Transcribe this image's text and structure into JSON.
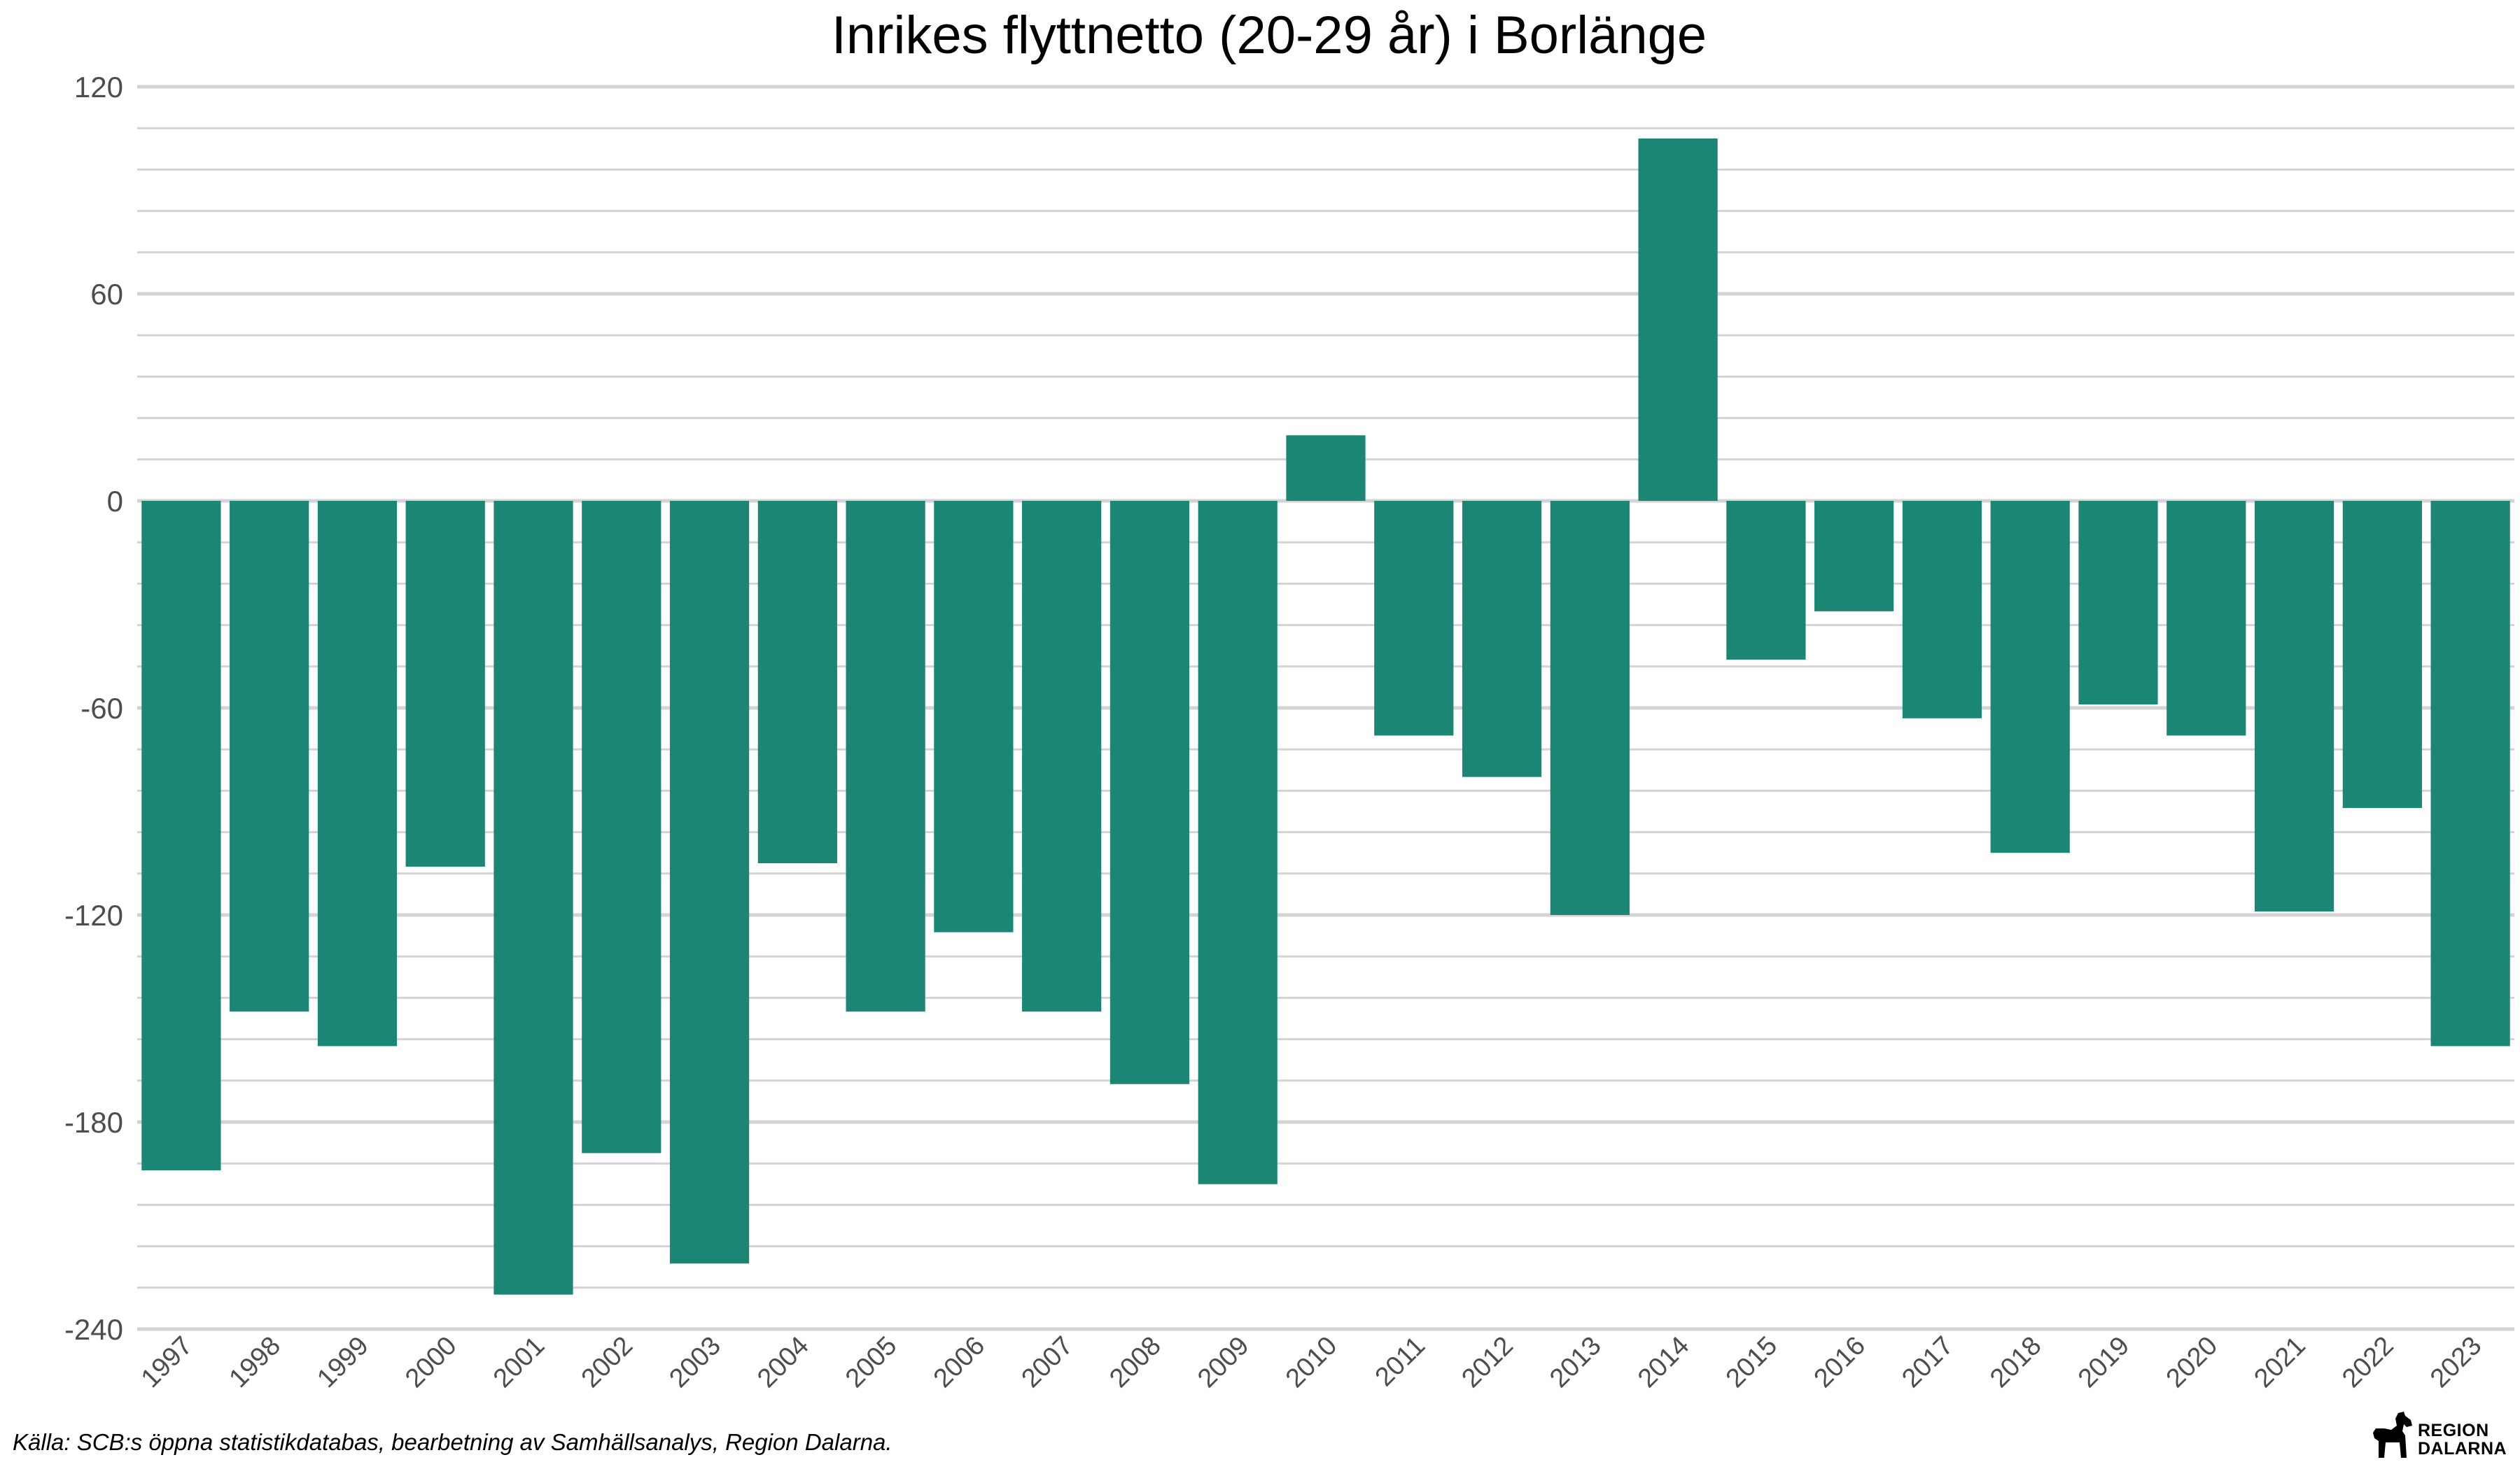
{
  "chart_data": {
    "type": "bar",
    "title": "Inrikes flyttnetto (20-29 år) i Borlänge",
    "xlabel": "",
    "ylabel": "",
    "ylim": [
      -240,
      120
    ],
    "yticks": [
      "120",
      "60",
      "0",
      "-60",
      "-120",
      "-180",
      "-240"
    ],
    "ytick_values": [
      120,
      60,
      0,
      -60,
      -120,
      -180,
      -240
    ],
    "minor_step": 12,
    "grid": true,
    "bar_color": "#1a8673",
    "grid_color": "#d3d3d3",
    "categories": [
      "1997",
      "1998",
      "1999",
      "2000",
      "2001",
      "2002",
      "2003",
      "2004",
      "2005",
      "2006",
      "2007",
      "2008",
      "2009",
      "2010",
      "2011",
      "2012",
      "2013",
      "2014",
      "2015",
      "2016",
      "2017",
      "2018",
      "2019",
      "2020",
      "2021",
      "2022",
      "2023"
    ],
    "values": [
      -194,
      -148,
      -158,
      -106,
      -230,
      -189,
      -221,
      -105,
      -148,
      -125,
      -148,
      -169,
      -198,
      19,
      -68,
      -80,
      -120,
      105,
      -46,
      -32,
      -63,
      -102,
      -59,
      -68,
      -119,
      -89,
      -158
    ]
  },
  "caption": "Källa: SCB:s öppna statistikdatabas, bearbetning av Samhällsanalys, Region Dalarna.",
  "logo": {
    "line1": "REGION",
    "line2": "DALARNA",
    "icon": "dala-horse-icon"
  }
}
